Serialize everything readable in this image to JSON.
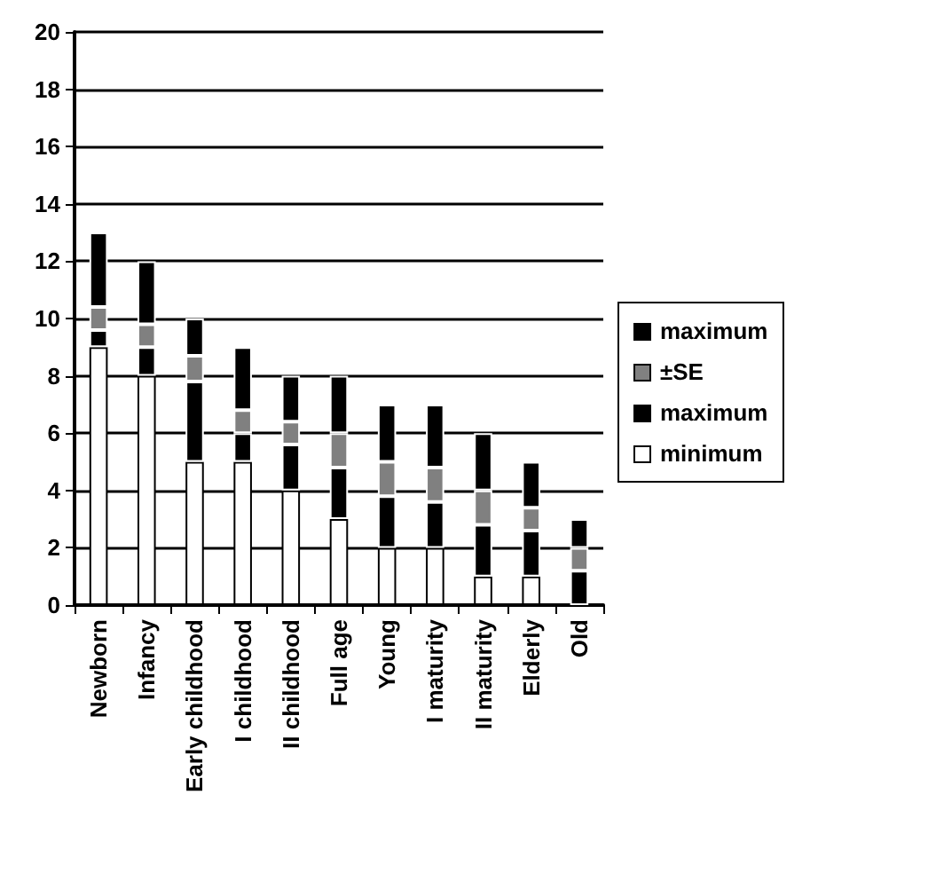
{
  "chart_data": {
    "type": "bar",
    "stacked": true,
    "categories": [
      "Newborn",
      "Infancy",
      "Early childhood",
      "I childhood",
      "II childhood",
      "Full age",
      "Young",
      "I maturity",
      "II maturity",
      "Elderly",
      "Old"
    ],
    "series": [
      {
        "name": "minimum",
        "color": "#ffffff",
        "values": [
          9,
          8,
          5,
          5,
          4,
          3,
          2,
          2,
          1,
          1,
          0
        ]
      },
      {
        "name": "maximum",
        "color": "#000000",
        "values": [
          0.6,
          1.0,
          2.8,
          1.0,
          1.6,
          1.8,
          1.8,
          1.6,
          1.8,
          1.6,
          1.2
        ]
      },
      {
        "name": "±SE",
        "color": "#808080",
        "values": [
          0.8,
          0.8,
          0.9,
          0.8,
          0.8,
          1.2,
          1.2,
          1.2,
          1.2,
          0.8,
          0.8
        ]
      },
      {
        "name": "maximum",
        "color": "#000000",
        "values": [
          2.6,
          2.2,
          1.3,
          2.2,
          1.6,
          2.0,
          2.0,
          2.2,
          2.0,
          1.6,
          1.0
        ]
      }
    ],
    "ylim": [
      0,
      20
    ],
    "yticks": [
      0,
      2,
      4,
      6,
      8,
      10,
      12,
      14,
      16,
      18,
      20
    ],
    "grid": "y",
    "legend": "right"
  }
}
